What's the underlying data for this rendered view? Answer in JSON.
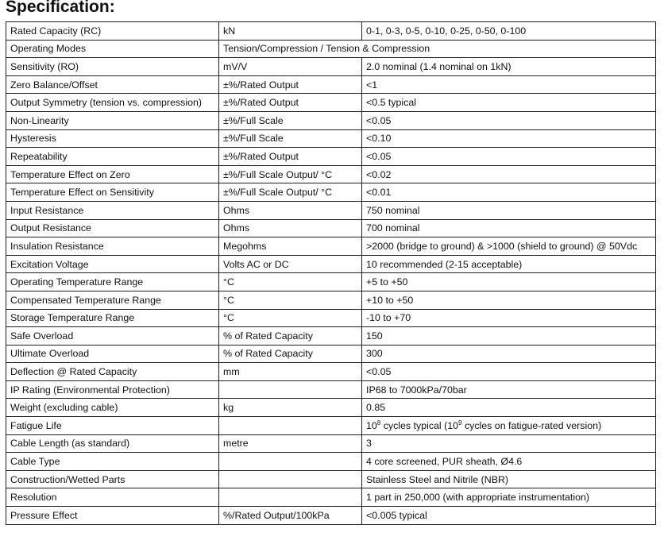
{
  "title": "Specification:",
  "rows": [
    [
      "Rated Capacity (RC)",
      "kN",
      "0-1, 0-3, 0-5, 0-10, 0-25, 0-50, 0-100"
    ],
    [
      "Operating Modes",
      "Tension/Compression / Tension & Compression",
      ""
    ],
    [
      "Sensitivity (RO)",
      "mV/V",
      "2.0 nominal (1.4 nominal on 1kN)"
    ],
    [
      "Zero Balance/Offset",
      "±%/Rated Output",
      "<1"
    ],
    [
      "Output Symmetry (tension vs. compression)",
      "±%/Rated Output",
      "<0.5 typical"
    ],
    [
      "Non-Linearity",
      "±%/Full Scale",
      "<0.05"
    ],
    [
      "Hysteresis",
      "±%/Full Scale",
      "<0.10"
    ],
    [
      "Repeatability",
      "±%/Rated Output",
      "<0.05"
    ],
    [
      "Temperature Effect on Zero",
      "±%/Full Scale Output/ °C",
      "<0.02"
    ],
    [
      "Temperature Effect on Sensitivity",
      "±%/Full Scale Output/ °C",
      "<0.01"
    ],
    [
      "Input Resistance",
      "Ohms",
      "750 nominal"
    ],
    [
      "Output Resistance",
      "Ohms",
      "700 nominal"
    ],
    [
      "Insulation Resistance",
      "Megohms",
      ">2000 (bridge to ground) & >1000 (shield to ground) @ 50Vdc"
    ],
    [
      "Excitation Voltage",
      "Volts AC or DC",
      "10 recommended (2-15 acceptable)"
    ],
    [
      "Operating Temperature Range",
      "°C",
      "+5 to +50"
    ],
    [
      "Compensated Temperature Range",
      "°C",
      "+10 to +50"
    ],
    [
      "Storage Temperature Range",
      "°C",
      "-10 to +70"
    ],
    [
      "Safe Overload",
      "% of Rated Capacity",
      "150"
    ],
    [
      "Ultimate Overload",
      "% of Rated Capacity",
      "300"
    ],
    [
      "Deflection @ Rated Capacity",
      "mm",
      "<0.05"
    ],
    [
      "IP Rating (Environmental Protection)",
      "",
      "IP68 to 7000kPa/70bar"
    ],
    [
      "Weight (excluding cable)",
      "kg",
      "0.85"
    ],
    [
      "Fatigue Life",
      "",
      ""
    ],
    [
      "Cable Length (as standard)",
      "metre",
      "3"
    ],
    [
      "Cable Type",
      "",
      "4 core screened, PUR sheath, Ø4.6"
    ],
    [
      "Construction/Wetted Parts",
      "",
      "Stainless Steel and Nitrile (NBR)"
    ],
    [
      "Resolution",
      "",
      "1 part in 250,000 (with appropriate instrumentation)"
    ],
    [
      "Pressure Effect",
      "%/Rated Output/100kPa",
      "<0.005 typical"
    ]
  ],
  "fatigue_value": [
    "10",
    "8",
    " cycles typical (10",
    "9",
    " cycles on fatigue-rated version)"
  ]
}
